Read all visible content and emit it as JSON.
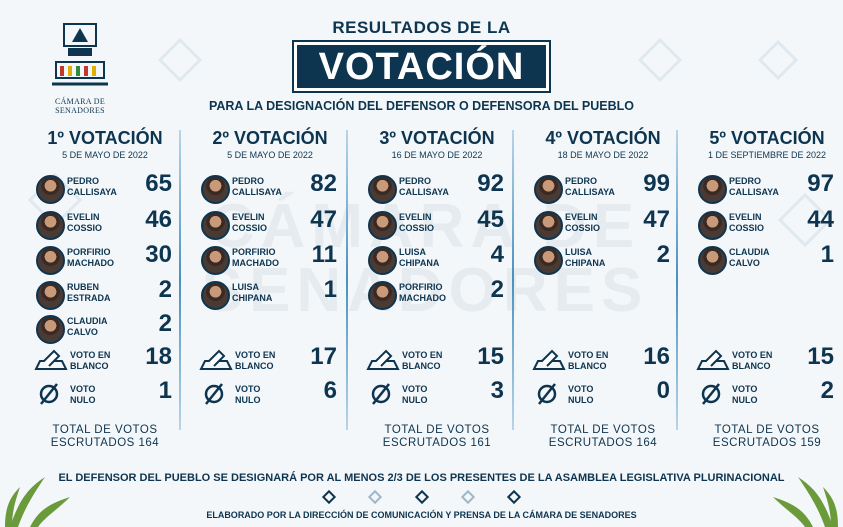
{
  "colors": {
    "navy": "#0d3550",
    "background": "#f4f7f9",
    "separator": "#4a90bf"
  },
  "logo": {
    "text": "CÁMARA DE SENADORES",
    "icon": "senate-building-icon"
  },
  "header": {
    "top": "RESULTADOS DE LA",
    "main": "VOTACIÓN",
    "subtitle": "PARA LA DESIGNACIÓN DEL DEFENSOR O DEFENSORA DEL PUEBLO"
  },
  "watermark": {
    "line1": "CÁMARA DE",
    "line2": "SENADORES"
  },
  "rounds": [
    {
      "title": "1º VOTACIÓN",
      "date": "5 DE MAYO DE 2022",
      "candidates": [
        {
          "name1": "PEDRO",
          "name2": "CALLISAYA",
          "votes": "65"
        },
        {
          "name1": "EVELIN",
          "name2": "COSSIO",
          "votes": "46"
        },
        {
          "name1": "PORFIRIO",
          "name2": "MACHADO",
          "votes": "30"
        },
        {
          "name1": "RUBEN",
          "name2": "ESTRADA",
          "votes": "2"
        },
        {
          "name1": "CLAUDIA",
          "name2": "CALVO",
          "votes": "2"
        }
      ],
      "blank": {
        "l1": "VOTO EN",
        "l2": "BLANCO",
        "votes": "18"
      },
      "null": {
        "l1": "VOTO",
        "l2": "NULO",
        "votes": "1"
      },
      "total1": "TOTAL DE VOTOS",
      "total2": "ESCRUTADOS 164"
    },
    {
      "title": "2º VOTACIÓN",
      "date": "5 DE MAYO DE 2022",
      "candidates": [
        {
          "name1": "PEDRO",
          "name2": "CALLISAYA",
          "votes": "82"
        },
        {
          "name1": "EVELIN",
          "name2": "COSSIO",
          "votes": "47"
        },
        {
          "name1": "PORFIRIO",
          "name2": "MACHADO",
          "votes": "11"
        },
        {
          "name1": "LUISA",
          "name2": "CHIPANA",
          "votes": "1"
        }
      ],
      "blank": {
        "l1": "VOTO EN",
        "l2": "BLANCO",
        "votes": "17"
      },
      "null": {
        "l1": "VOTO",
        "l2": "NULO",
        "votes": "6"
      },
      "total1": "",
      "total2": ""
    },
    {
      "title": "3º VOTACIÓN",
      "date": "16 DE MAYO DE 2022",
      "candidates": [
        {
          "name1": "PEDRO",
          "name2": "CALLISAYA",
          "votes": "92"
        },
        {
          "name1": "EVELIN",
          "name2": "COSSIO",
          "votes": "45"
        },
        {
          "name1": "LUISA",
          "name2": "CHIPANA",
          "votes": "4"
        },
        {
          "name1": "PORFIRIO",
          "name2": "MACHADO",
          "votes": "2"
        }
      ],
      "blank": {
        "l1": "VOTO EN",
        "l2": "BLANCO",
        "votes": "15"
      },
      "null": {
        "l1": "VOTO",
        "l2": "NULO",
        "votes": "3"
      },
      "total1": "TOTAL DE VOTOS",
      "total2": "ESCRUTADOS 161"
    },
    {
      "title": "4º VOTACIÓN",
      "date": "18 DE MAYO DE 2022",
      "candidates": [
        {
          "name1": "PEDRO",
          "name2": "CALLISAYA",
          "votes": "99"
        },
        {
          "name1": "EVELIN",
          "name2": "COSSIO",
          "votes": "47"
        },
        {
          "name1": "LUISA",
          "name2": "CHIPANA",
          "votes": "2"
        }
      ],
      "blank": {
        "l1": "VOTO EN",
        "l2": "BLANCO",
        "votes": "16"
      },
      "null": {
        "l1": "VOTO",
        "l2": "NULO",
        "votes": "0"
      },
      "total1": "TOTAL DE VOTOS",
      "total2": "ESCRUTADOS 164"
    },
    {
      "title": "5º VOTACIÓN",
      "date": "1 DE SEPTIEMBRE DE 2022",
      "candidates": [
        {
          "name1": "PEDRO",
          "name2": "CALLISAYA",
          "votes": "97"
        },
        {
          "name1": "EVELIN",
          "name2": "COSSIO",
          "votes": "44"
        },
        {
          "name1": "CLAUDIA",
          "name2": "CALVO",
          "votes": "1"
        }
      ],
      "blank": {
        "l1": "VOTO EN",
        "l2": "BLANCO",
        "votes": "15"
      },
      "null": {
        "l1": "VOTO",
        "l2": "NULO",
        "votes": "2"
      },
      "total1": "TOTAL DE VOTOS",
      "total2": "ESCRUTADOS 159"
    }
  ],
  "footer": {
    "note": "EL DEFENSOR DEL PUEBLO SE DESIGNARÁ POR AL MENOS 2/3 DE LOS PRESENTES DE LA ASAMBLEA LEGISLATIVA PLURINACIONAL",
    "credit": "ELABORADO POR LA DIRECCIÓN DE COMUNICACIÓN Y  PRENSA DE LA CÁMARA DE SENADORES"
  }
}
